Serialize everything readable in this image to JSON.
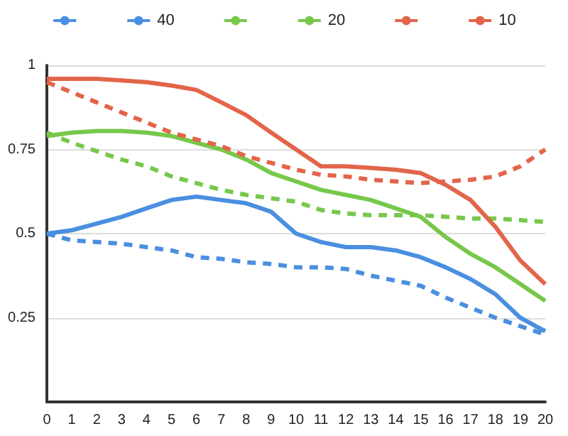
{
  "chart_data": {
    "type": "line",
    "x": [
      0,
      1,
      2,
      3,
      4,
      5,
      6,
      7,
      8,
      9,
      10,
      11,
      12,
      13,
      14,
      15,
      16,
      17,
      18,
      19,
      20
    ],
    "xlim": [
      0,
      20
    ],
    "xticks": [
      0,
      1,
      2,
      3,
      4,
      5,
      6,
      7,
      8,
      9,
      10,
      11,
      12,
      13,
      14,
      15,
      16,
      17,
      18,
      19,
      20
    ],
    "ylim": [
      0,
      1
    ],
    "yticks": [
      0.25,
      0.5,
      0.75,
      1
    ],
    "grid": "y",
    "legend": "top",
    "marker": "none",
    "series": [
      {
        "color": "#4a8fe0",
        "line_style": "dashed",
        "values": [
          0.5,
          0.48,
          0.475,
          0.47,
          0.46,
          0.45,
          0.43,
          0.425,
          0.415,
          0.41,
          0.4,
          0.4,
          0.395,
          0.375,
          0.36,
          0.345,
          0.31,
          0.28,
          0.25,
          0.225,
          0.2
        ]
      },
      {
        "name": "40",
        "color": "#4a8fe0",
        "line_style": "solid",
        "values": [
          0.5,
          0.51,
          0.53,
          0.55,
          0.575,
          0.6,
          0.61,
          0.6,
          0.59,
          0.565,
          0.5,
          0.475,
          0.46,
          0.46,
          0.45,
          0.43,
          0.4,
          0.365,
          0.32,
          0.25,
          0.21
        ]
      },
      {
        "color": "#77c84a",
        "line_style": "dashed",
        "values": [
          0.8,
          0.77,
          0.745,
          0.72,
          0.7,
          0.67,
          0.65,
          0.63,
          0.615,
          0.605,
          0.595,
          0.57,
          0.56,
          0.555,
          0.555,
          0.555,
          0.55,
          0.545,
          0.545,
          0.54,
          0.535
        ]
      },
      {
        "name": "20",
        "color": "#77c84a",
        "line_style": "solid",
        "values": [
          0.79,
          0.8,
          0.805,
          0.805,
          0.8,
          0.79,
          0.77,
          0.75,
          0.72,
          0.68,
          0.655,
          0.63,
          0.615,
          0.6,
          0.575,
          0.55,
          0.49,
          0.44,
          0.4,
          0.35,
          0.3
        ]
      },
      {
        "color": "#e2654a",
        "line_style": "dashed",
        "values": [
          0.95,
          0.92,
          0.89,
          0.86,
          0.83,
          0.8,
          0.78,
          0.76,
          0.73,
          0.71,
          0.69,
          0.675,
          0.67,
          0.66,
          0.655,
          0.65,
          0.655,
          0.66,
          0.67,
          0.7,
          0.75
        ]
      },
      {
        "name": "10",
        "color": "#e2654a",
        "line_style": "solid",
        "values": [
          0.96,
          0.96,
          0.96,
          0.955,
          0.95,
          0.94,
          0.927,
          0.89,
          0.852,
          0.8,
          0.75,
          0.7,
          0.7,
          0.695,
          0.69,
          0.68,
          0.645,
          0.6,
          0.52,
          0.42,
          0.35
        ]
      }
    ]
  }
}
